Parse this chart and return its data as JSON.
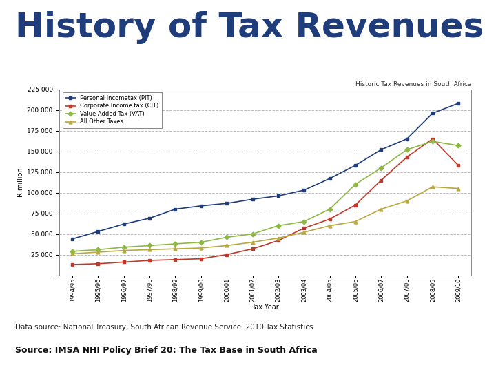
{
  "title": "History of Tax Revenues in SA",
  "chart_title": "Historic Tax Revenues in South Africa",
  "xlabel": "Tax Year",
  "ylabel": "R million",
  "source_line1": "Data source: National Treasury, South African Revenue Service. 2010 Tax Statistics",
  "source_line2": "Source: IMSA NHI Policy Brief 20: The Tax Base in South Africa",
  "tax_years": [
    "1994/95",
    "1995/96",
    "1996/97",
    "1997/98",
    "1998/99",
    "1999/00",
    "2000/01",
    "2001/02",
    "2002/03",
    "2003/04",
    "2004/05",
    "2005/06",
    "2006/07",
    "2007/08",
    "2008/09",
    "2009/10"
  ],
  "PIT": [
    44000,
    53000,
    62000,
    69000,
    80000,
    84000,
    87000,
    92000,
    96000,
    103000,
    117000,
    133000,
    152000,
    165000,
    196000,
    208000
  ],
  "CIT": [
    13000,
    14000,
    16000,
    18000,
    19000,
    20000,
    25000,
    32000,
    42000,
    57000,
    68000,
    85000,
    115000,
    143000,
    165000,
    133000
  ],
  "VAT": [
    29000,
    31000,
    34000,
    36000,
    38000,
    40000,
    46000,
    50000,
    60000,
    65000,
    80000,
    110000,
    130000,
    152000,
    162000,
    157000
  ],
  "Other": [
    26000,
    28000,
    30000,
    31000,
    32000,
    33000,
    36000,
    40000,
    45000,
    52000,
    60000,
    65000,
    80000,
    90000,
    107000,
    105000
  ],
  "PIT_color": "#1F3D7A",
  "CIT_color": "#C0392B",
  "VAT_color": "#8DB843",
  "Other_color": "#B8A840",
  "title_color": "#1F3D7A",
  "ylim": [
    0,
    225000
  ],
  "yticks": [
    0,
    25000,
    50000,
    75000,
    100000,
    125000,
    150000,
    175000,
    200000,
    225000
  ],
  "title_fontsize": 36,
  "chart_bg": "#FFFFFF",
  "fig_bg": "#FFFFFF",
  "grid_color": "#AAAAAA",
  "grid_style": "--"
}
